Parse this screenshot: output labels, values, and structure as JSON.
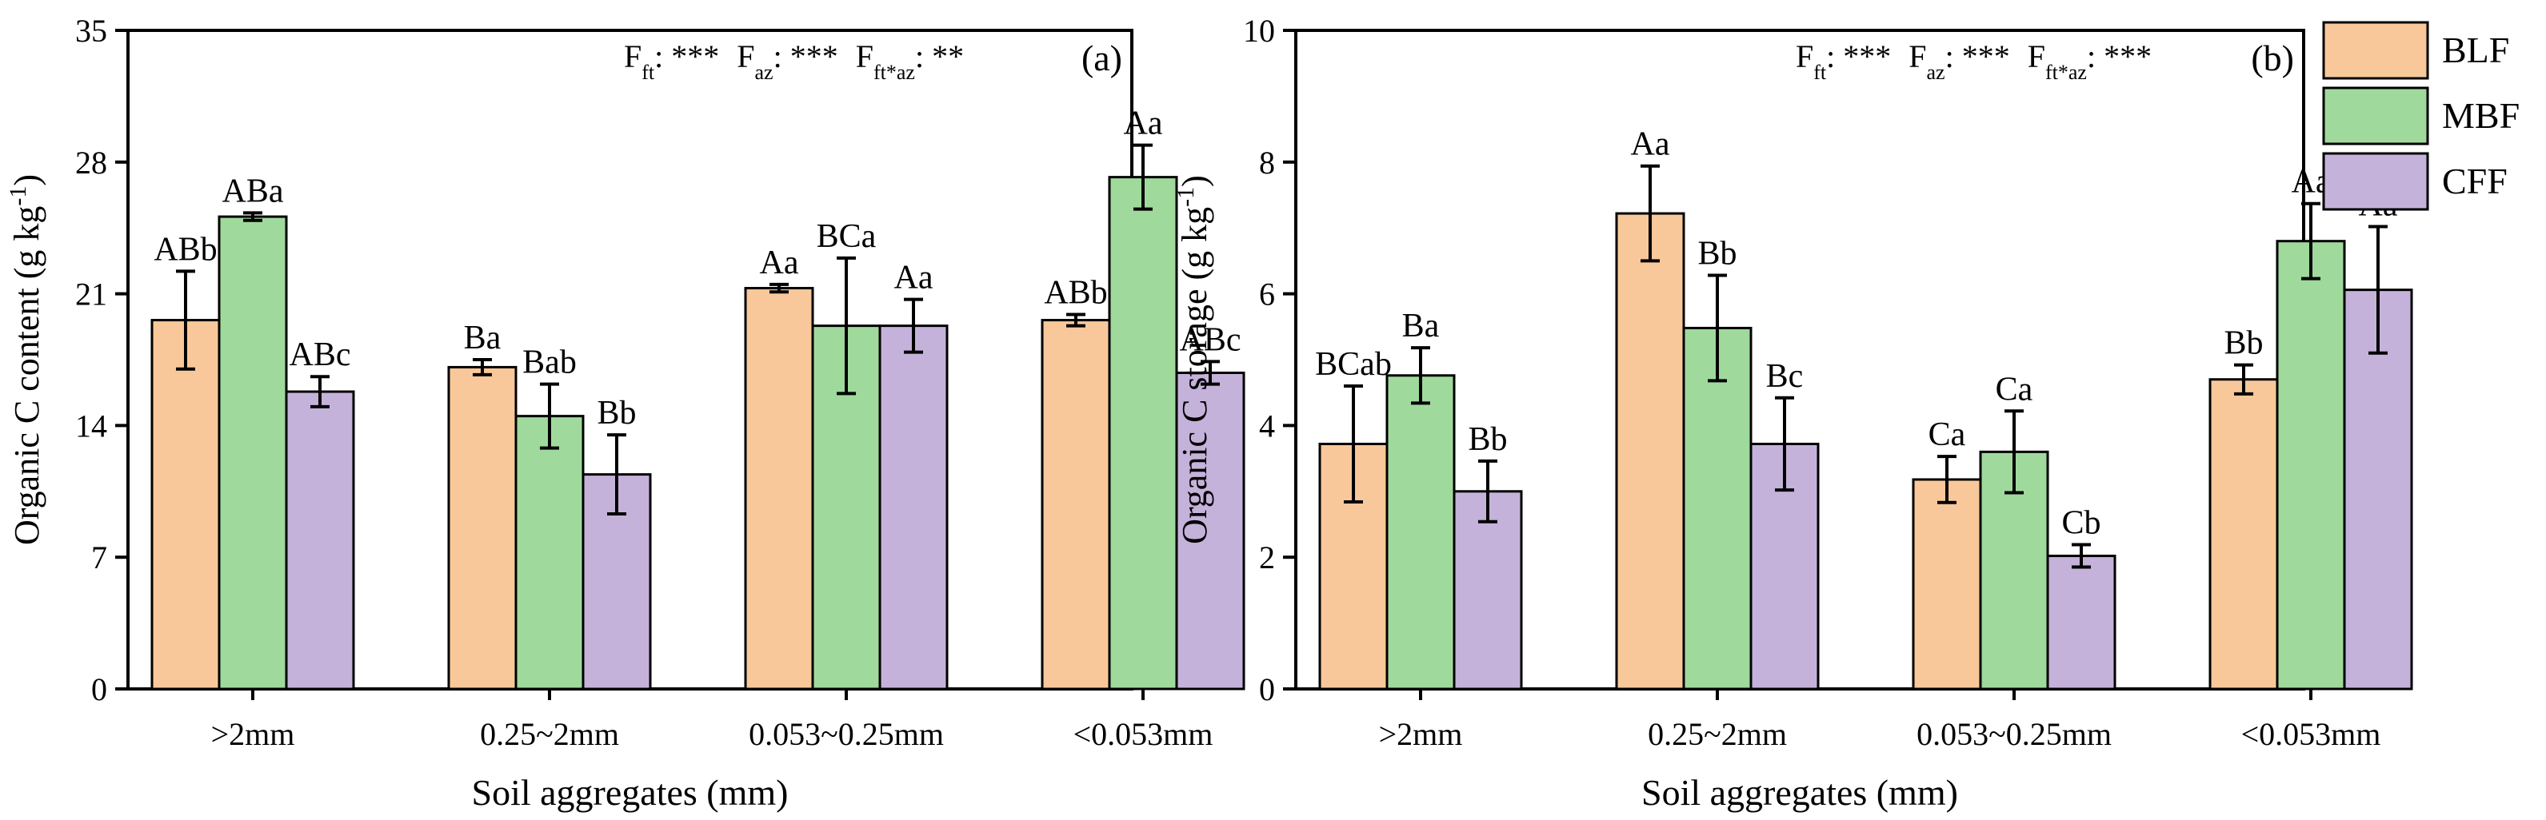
{
  "colors": {
    "BLF": "#F9C89A",
    "MBF": "#9FDA9C",
    "CFF": "#C5B2DA",
    "axis": "#000000"
  },
  "legend": {
    "entries": [
      "BLF",
      "MBF",
      "CFF"
    ]
  },
  "chart_data": [
    {
      "type": "bar",
      "panel": "(a)",
      "xlabel": "Soil aggregates (mm)",
      "ylabel": "Organic C content (g kg-1)",
      "ylabel_parts": {
        "main": "Organic C content (g kg",
        "sup": "-1",
        "close": ")"
      },
      "ylim": [
        0,
        35
      ],
      "yticks": [
        0,
        7,
        14,
        21,
        28,
        35
      ],
      "categories": [
        ">2mm",
        "0.25~2mm",
        "0.053~0.25mm",
        "<0.053mm"
      ],
      "stats": [
        {
          "name": "F",
          "sub": "ft",
          "stars": ": ***"
        },
        {
          "name": "F",
          "sub": "az",
          "stars": ": ***"
        },
        {
          "name": "F",
          "sub": "ft*az",
          "stars": ": **"
        }
      ],
      "series": [
        {
          "name": "BLF",
          "values": [
            19.6,
            17.1,
            21.3,
            19.6
          ],
          "errors": [
            2.6,
            0.4,
            0.2,
            0.3
          ],
          "labels": [
            "ABb",
            "Ba",
            "Aa",
            "ABb"
          ]
        },
        {
          "name": "MBF",
          "values": [
            25.1,
            14.5,
            19.3,
            27.2
          ],
          "errors": [
            0.2,
            1.7,
            3.6,
            1.7
          ],
          "labels": [
            "ABa",
            "Bab",
            "BCa",
            "Aa"
          ]
        },
        {
          "name": "CFF",
          "values": [
            15.8,
            11.4,
            19.3,
            16.8
          ],
          "errors": [
            0.8,
            2.1,
            1.4,
            0.6
          ],
          "labels": [
            "ABc",
            "Bb",
            "Aa",
            "ABc"
          ]
        }
      ]
    },
    {
      "type": "bar",
      "panel": "(b)",
      "xlabel": "Soil aggregates (mm)",
      "ylabel": "Organic C storage (g kg-1)",
      "ylabel_parts": {
        "main": "Organic C storage (g kg",
        "sup": "-1",
        "close": ")"
      },
      "ylim": [
        0,
        10
      ],
      "yticks": [
        0,
        2,
        4,
        6,
        8,
        10
      ],
      "categories": [
        ">2mm",
        "0.25~2mm",
        "0.053~0.25mm",
        "<0.053mm"
      ],
      "stats": [
        {
          "name": "F",
          "sub": "ft",
          "stars": ": ***"
        },
        {
          "name": "F",
          "sub": "az",
          "stars": ": ***"
        },
        {
          "name": "F",
          "sub": "ft*az",
          "stars": ": ***"
        }
      ],
      "series": [
        {
          "name": "BLF",
          "values": [
            3.72,
            7.22,
            3.18,
            4.7
          ],
          "errors": [
            0.88,
            0.72,
            0.35,
            0.22
          ],
          "labels": [
            "BCab",
            "Aa",
            "Ca",
            "Bb"
          ]
        },
        {
          "name": "MBF",
          "values": [
            4.76,
            5.48,
            3.6,
            6.8
          ],
          "errors": [
            0.42,
            0.8,
            0.62,
            0.57
          ],
          "labels": [
            "Ba",
            "Bb",
            "Ca",
            "Aa"
          ]
        },
        {
          "name": "CFF",
          "values": [
            3.0,
            3.72,
            2.02,
            6.06
          ],
          "errors": [
            0.46,
            0.7,
            0.17,
            0.96
          ],
          "labels": [
            "Bb",
            "Bc",
            "Cb",
            "Aa"
          ]
        }
      ]
    }
  ]
}
